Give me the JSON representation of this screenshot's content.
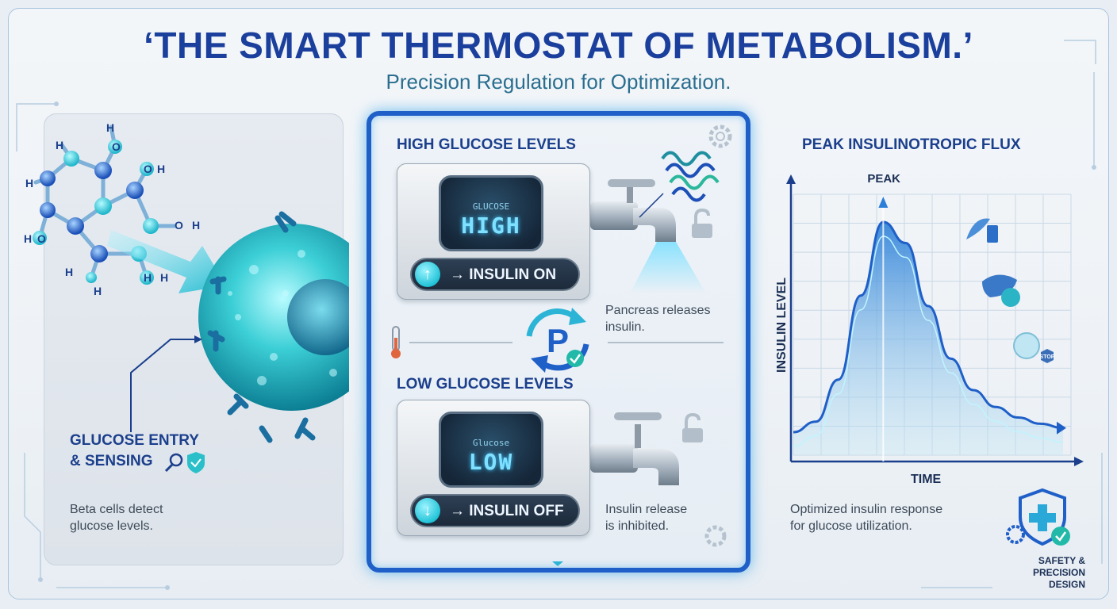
{
  "header": {
    "title": "‘THE SMART THERMOSTAT OF METABOLISM.’",
    "subtitle": "Precision Regulation for Optimization."
  },
  "left": {
    "atoms": [
      "H",
      "H",
      "O",
      "H",
      "H",
      "O",
      "H",
      "H",
      "O",
      "H",
      "H",
      "O",
      "H",
      "H"
    ],
    "entry_title_line1": "GLUCOSE ENTRY",
    "entry_title_line2": "& SENSING",
    "desc_line1": "Beta cells detect",
    "desc_line2": "glucose levels."
  },
  "center": {
    "high_heading": "HIGH GLUCOSE LEVELS",
    "high_display_label": "GLUCOSE",
    "high_display_value": "HIGH",
    "high_button": "→ INSULIN ON",
    "high_button_icon": "↑",
    "high_note_line1": "Pancreas releases",
    "high_note_line2": "insulin.",
    "low_heading": "LOW GLUCOSE LEVELS",
    "low_display_label": "Glucose",
    "low_display_value": "LOW",
    "low_button": "→ INSULIN OFF",
    "low_button_icon": "↓",
    "low_note_line1": "Insulin release",
    "low_note_line2": "is inhibited.",
    "center_symbol": "P",
    "icons": [
      "lock-open-icon",
      "gear-icon",
      "thermometer-icon",
      "faucet-icon",
      "protein-icon",
      "cycle-icon"
    ]
  },
  "right": {
    "title": "PEAK INSULINOTROPIC FLUX",
    "desc_line1": "Optimized insulin response",
    "desc_line2": "for glucose utilization.",
    "safety_line1": "SAFETY &",
    "safety_line2": "PRECISION DESIGN",
    "stop_label": "STOP"
  },
  "chart_data": {
    "type": "area",
    "title": "PEAK INSULINOTROPIC FLUX",
    "xlabel": "TIME",
    "ylabel": "INSULIN LEVEL",
    "peak_label": "PEAK",
    "grid": true,
    "series": [
      {
        "values": [
          0.0,
          0.05,
          0.25,
          0.65,
          1.0,
          0.9,
          0.6,
          0.35,
          0.2,
          0.12,
          0.07,
          0.04,
          0.02
        ]
      }
    ]
  },
  "colors": {
    "title": "#1b3f9c",
    "subtitle": "#2a6e8f",
    "accent": "#1f5fc8",
    "cyan": "#22c4d8"
  }
}
